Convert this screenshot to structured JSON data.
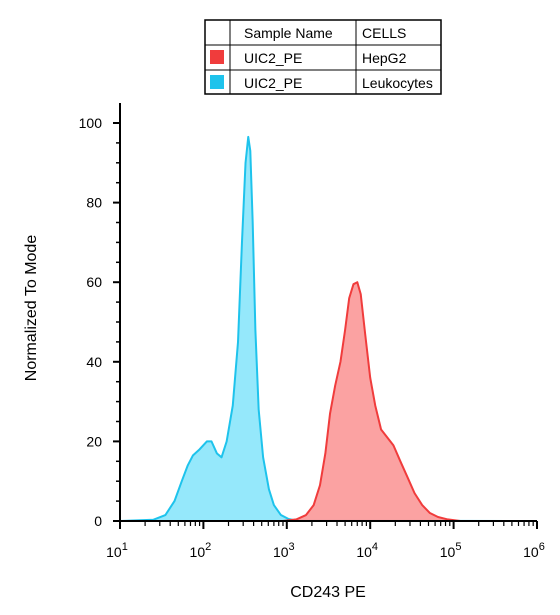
{
  "legend": {
    "headers": [
      "",
      "Sample Name",
      "CELLS"
    ],
    "rows": [
      {
        "color": "#f03c3c",
        "sample": "UIC2_PE",
        "cells": "HepG2"
      },
      {
        "color": "#1ec3ec",
        "sample": "UIC2_PE",
        "cells": "Leukocytes"
      }
    ]
  },
  "chart_data": {
    "type": "area",
    "xlabel": "CD243 PE",
    "ylabel": "Normalized To Mode",
    "xscale": "log",
    "xlim": [
      10,
      1000000
    ],
    "ylim": [
      0,
      100
    ],
    "yticks": [
      0,
      20,
      40,
      60,
      80,
      100
    ],
    "xticks": [
      {
        "base": "10",
        "exp": "1"
      },
      {
        "base": "10",
        "exp": "2"
      },
      {
        "base": "10",
        "exp": "3"
      },
      {
        "base": "10",
        "exp": "4"
      },
      {
        "base": "10",
        "exp": "5"
      },
      {
        "base": "10",
        "exp": "6"
      }
    ],
    "series": [
      {
        "cells": "Leukocytes",
        "color": "#1ec3ec",
        "fill": "#8ae6fb",
        "points": [
          [
            10,
            0
          ],
          [
            25,
            0.3
          ],
          [
            35,
            1.5
          ],
          [
            45,
            5
          ],
          [
            55,
            10
          ],
          [
            65,
            14
          ],
          [
            75,
            16.5
          ],
          [
            90,
            18
          ],
          [
            110,
            20
          ],
          [
            125,
            20
          ],
          [
            145,
            17
          ],
          [
            165,
            16
          ],
          [
            190,
            20
          ],
          [
            225,
            29
          ],
          [
            260,
            45
          ],
          [
            290,
            70
          ],
          [
            320,
            90
          ],
          [
            345,
            96.5
          ],
          [
            365,
            93
          ],
          [
            390,
            75
          ],
          [
            420,
            48
          ],
          [
            460,
            28
          ],
          [
            520,
            16
          ],
          [
            610,
            8
          ],
          [
            700,
            4
          ],
          [
            850,
            1.5
          ],
          [
            1050,
            0.5
          ],
          [
            1300,
            0.1
          ],
          [
            1000000,
            0
          ]
        ]
      },
      {
        "cells": "HepG2",
        "color": "#f03c3c",
        "fill": "#fb9898",
        "points": [
          [
            10,
            0
          ],
          [
            900,
            0
          ],
          [
            1300,
            0.4
          ],
          [
            1700,
            1.5
          ],
          [
            2100,
            4
          ],
          [
            2500,
            9
          ],
          [
            2900,
            17
          ],
          [
            3300,
            27
          ],
          [
            3800,
            34
          ],
          [
            4400,
            40
          ],
          [
            5000,
            48
          ],
          [
            5600,
            56
          ],
          [
            6300,
            59.5
          ],
          [
            7000,
            60
          ],
          [
            7700,
            57
          ],
          [
            8700,
            47
          ],
          [
            10000,
            36
          ],
          [
            11500,
            29
          ],
          [
            13500,
            23
          ],
          [
            16000,
            21
          ],
          [
            19000,
            19
          ],
          [
            23000,
            15
          ],
          [
            28000,
            11
          ],
          [
            34000,
            7
          ],
          [
            42000,
            4
          ],
          [
            52000,
            2
          ],
          [
            65000,
            1
          ],
          [
            85000,
            0.4
          ],
          [
            120000,
            0
          ],
          [
            1000000,
            0
          ]
        ]
      }
    ]
  }
}
